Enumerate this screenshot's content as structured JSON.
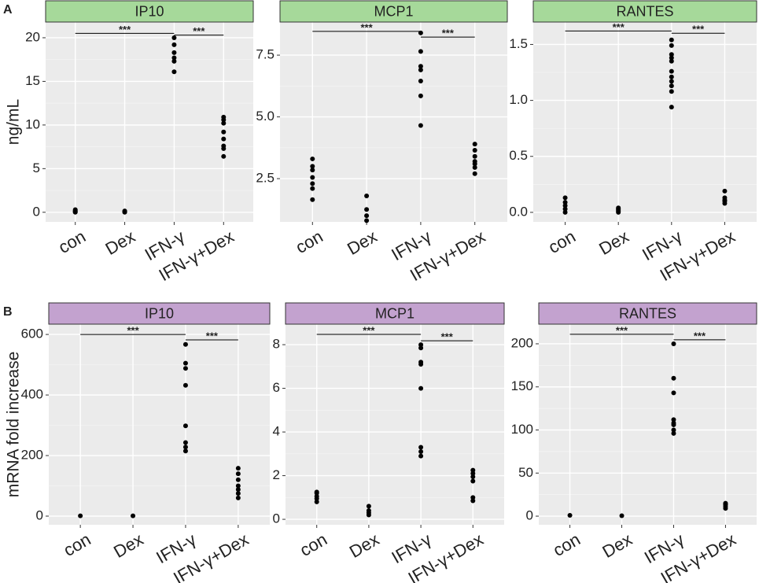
{
  "chart_data": [
    {
      "type": "scatter",
      "panel": "A",
      "title": "IP10",
      "ylabel": "ng/mL",
      "strip_color": "#a6d99a",
      "categories": [
        "con",
        "Dex",
        "IFN-γ",
        "IFN-γ+Dex"
      ],
      "values": [
        [
          0.0,
          0.05,
          0.1,
          0.2,
          0.3
        ],
        [
          0.0,
          0.05,
          0.1,
          0.15
        ],
        [
          16.1,
          17.3,
          17.7,
          18.3,
          19.2,
          20.0
        ],
        [
          6.4,
          7.3,
          7.6,
          8.4,
          9.2,
          10.2,
          10.6,
          10.9
        ]
      ],
      "ylim": [
        -1.1,
        21.8
      ],
      "yticks": [
        0,
        5,
        10,
        15,
        20
      ],
      "brackets": [
        {
          "text": "***",
          "from": "con",
          "to": "IFN-γ",
          "y": 20.5
        },
        {
          "text": "***",
          "from": "IFN-γ",
          "to": "IFN-γ+Dex",
          "y": 20.3
        }
      ]
    },
    {
      "type": "scatter",
      "title": "MCP1",
      "strip_color": "#a6d99a",
      "categories": [
        "con",
        "Dex",
        "IFN-γ",
        "IFN-γ+Dex"
      ],
      "values": [
        [
          1.65,
          2.1,
          2.3,
          2.55,
          2.85,
          3.0,
          3.3
        ],
        [
          0.8,
          1.0,
          1.25,
          1.8
        ],
        [
          4.65,
          5.85,
          6.45,
          6.9,
          7.05,
          7.65,
          8.4
        ],
        [
          2.7,
          2.95,
          3.1,
          3.2,
          3.4,
          3.65,
          3.9
        ]
      ],
      "ylim": [
        0.75,
        8.84
      ],
      "yticks": [
        2.5,
        {
          "value": 5,
          "label": "5.0"
        },
        7.5
      ],
      "brackets": [
        {
          "text": "***",
          "from": "con",
          "to": "IFN-γ",
          "y": 8.46
        },
        {
          "text": "***",
          "from": "IFN-γ",
          "to": "IFN-γ+Dex",
          "y": 8.23
        }
      ]
    },
    {
      "type": "scatter",
      "title": "RANTES",
      "strip_color": "#a6d99a",
      "categories": [
        "con",
        "Dex",
        "IFN-γ",
        "IFN-γ+Dex"
      ],
      "values": [
        [
          0.0,
          0.03,
          0.06,
          0.09,
          0.13
        ],
        [
          0.0,
          0.01,
          0.02,
          0.03,
          0.04
        ],
        [
          0.94,
          1.08,
          1.13,
          1.17,
          1.21,
          1.26,
          1.35,
          1.38,
          1.41,
          1.49,
          1.54
        ],
        [
          0.08,
          0.1,
          0.11,
          0.13,
          0.19
        ]
      ],
      "ylim": [
        -0.085,
        1.7
      ],
      "yticks": [
        {
          "value": 0,
          "label": "0.0"
        },
        0.5,
        {
          "value": 1,
          "label": "1.0"
        },
        1.5
      ],
      "brackets": [
        {
          "text": "***",
          "from": "con",
          "to": "IFN-γ",
          "y": 1.62
        },
        {
          "text": "***",
          "from": "IFN-γ",
          "to": "IFN-γ+Dex",
          "y": 1.6
        }
      ]
    },
    {
      "type": "scatter",
      "panel": "B",
      "title": "IP10",
      "ylabel": "mRNA fold increase",
      "strip_color": "#c3a2cf",
      "categories": [
        "con",
        "Dex",
        "IFN-γ",
        "IFN-γ+Dex"
      ],
      "values": [
        [
          1
        ],
        [
          1
        ],
        [
          215,
          228,
          243,
          298,
          432,
          488,
          505,
          567
        ],
        [
          60,
          75,
          88,
          100,
          120,
          140,
          158
        ]
      ],
      "ylim": [
        -28.6,
        634
      ],
      "yticks": [
        0,
        200,
        400,
        600
      ],
      "brackets": [
        {
          "text": "***",
          "from": "con",
          "to": "IFN-γ",
          "y": 600
        },
        {
          "text": "***",
          "from": "IFN-γ",
          "to": "IFN-γ+Dex",
          "y": 582
        }
      ]
    },
    {
      "type": "scatter",
      "title": "MCP1",
      "strip_color": "#c3a2cf",
      "categories": [
        "con",
        "Dex",
        "IFN-γ",
        "IFN-γ+Dex"
      ],
      "values": [
        [
          0.8,
          0.95,
          1.05,
          1.2,
          1.25
        ],
        [
          0.2,
          0.3,
          0.4,
          0.6
        ],
        [
          2.9,
          3.1,
          3.3,
          6.0,
          7.1,
          7.2,
          7.85,
          8.0
        ],
        [
          0.85,
          1.0,
          1.75,
          1.95,
          2.1,
          2.25
        ]
      ],
      "ylim": [
        -0.25,
        8.94
      ],
      "yticks": [
        0,
        2,
        4,
        6,
        8
      ],
      "brackets": [
        {
          "text": "***",
          "from": "con",
          "to": "IFN-γ",
          "y": 8.47
        },
        {
          "text": "***",
          "from": "IFN-γ",
          "to": "IFN-γ+Dex",
          "y": 8.18
        }
      ]
    },
    {
      "type": "scatter",
      "title": "RANTES",
      "strip_color": "#c3a2cf",
      "categories": [
        "con",
        "Dex",
        "IFN-γ",
        "IFN-γ+Dex"
      ],
      "values": [
        [
          1
        ],
        [
          0.5
        ],
        [
          96,
          100,
          106,
          108,
          112,
          143,
          160,
          200
        ],
        [
          9,
          11,
          13,
          14,
          15
        ]
      ],
      "ylim": [
        -10,
        222.8
      ],
      "yticks": [
        0,
        50,
        100,
        150,
        200
      ],
      "brackets": [
        {
          "text": "***",
          "from": "con",
          "to": "IFN-γ",
          "y": 211
        },
        {
          "text": "***",
          "from": "IFN-γ",
          "to": "IFN-γ+Dex",
          "y": 204.6
        }
      ]
    }
  ]
}
